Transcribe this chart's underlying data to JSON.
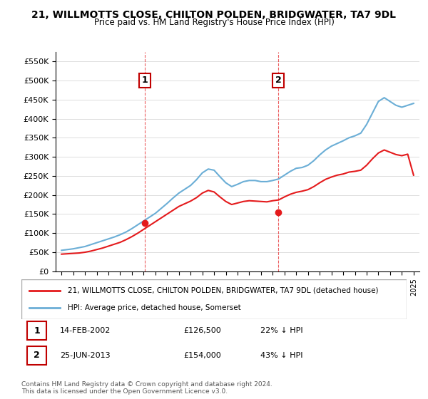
{
  "title": "21, WILLMOTTS CLOSE, CHILTON POLDEN, BRIDGWATER, TA7 9DL",
  "subtitle": "Price paid vs. HM Land Registry's House Price Index (HPI)",
  "ylim": [
    0,
    575000
  ],
  "yticks": [
    0,
    50000,
    100000,
    150000,
    200000,
    250000,
    300000,
    350000,
    400000,
    450000,
    500000,
    550000
  ],
  "xlabel": "",
  "legend_line1": "21, WILLMOTTS CLOSE, CHILTON POLDEN, BRIDGWATER, TA7 9DL (detached house)",
  "legend_line2": "HPI: Average price, detached house, Somerset",
  "transaction1_label": "1",
  "transaction1_date": "14-FEB-2002",
  "transaction1_price": 126500,
  "transaction1_year": 2002.12,
  "transaction1_text": "14-FEB-2002    £126,500    22% ↓ HPI",
  "transaction2_label": "2",
  "transaction2_date": "25-JUN-2013",
  "transaction2_price": 154000,
  "transaction2_year": 2013.48,
  "transaction2_text": "25-JUN-2013    £154,000    43% ↓ HPI",
  "footer": "Contains HM Land Registry data © Crown copyright and database right 2024.\nThis data is licensed under the Open Government Licence v3.0.",
  "hpi_color": "#6baed6",
  "price_color": "#e41a1c",
  "vline_color": "#e41a1c",
  "background_color": "#ffffff",
  "hpi_years": [
    1995,
    1995.5,
    1996,
    1996.5,
    1997,
    1997.5,
    1998,
    1998.5,
    1999,
    1999.5,
    2000,
    2000.5,
    2001,
    2001.5,
    2002,
    2002.5,
    2003,
    2003.5,
    2004,
    2004.5,
    2005,
    2005.5,
    2006,
    2006.5,
    2007,
    2007.5,
    2008,
    2008.5,
    2009,
    2009.5,
    2010,
    2010.5,
    2011,
    2011.5,
    2012,
    2012.5,
    2013,
    2013.5,
    2014,
    2014.5,
    2015,
    2015.5,
    2016,
    2016.5,
    2017,
    2017.5,
    2018,
    2018.5,
    2019,
    2019.5,
    2020,
    2020.5,
    2021,
    2021.5,
    2022,
    2022.5,
    2023,
    2023.5,
    2024,
    2024.5,
    2025
  ],
  "hpi_values": [
    55000,
    57000,
    59000,
    62000,
    65000,
    70000,
    75000,
    80000,
    85000,
    90000,
    96000,
    103000,
    112000,
    122000,
    132000,
    142000,
    152000,
    165000,
    178000,
    192000,
    205000,
    215000,
    225000,
    240000,
    258000,
    268000,
    265000,
    248000,
    232000,
    222000,
    228000,
    235000,
    238000,
    238000,
    235000,
    235000,
    238000,
    242000,
    252000,
    262000,
    270000,
    272000,
    278000,
    290000,
    305000,
    318000,
    328000,
    335000,
    342000,
    350000,
    355000,
    362000,
    385000,
    415000,
    445000,
    455000,
    445000,
    435000,
    430000,
    435000,
    440000
  ],
  "price_years": [
    1995,
    1995.5,
    1996,
    1996.5,
    1997,
    1997.5,
    1998,
    1998.5,
    1999,
    1999.5,
    2000,
    2000.5,
    2001,
    2001.5,
    2002,
    2002.5,
    2003,
    2003.5,
    2004,
    2004.5,
    2005,
    2005.5,
    2006,
    2006.5,
    2007,
    2007.5,
    2008,
    2008.5,
    2009,
    2009.5,
    2010,
    2010.5,
    2011,
    2011.5,
    2012,
    2012.5,
    2013,
    2013.5,
    2014,
    2014.5,
    2015,
    2015.5,
    2016,
    2016.5,
    2017,
    2017.5,
    2018,
    2018.5,
    2019,
    2019.5,
    2020,
    2020.5,
    2021,
    2021.5,
    2022,
    2022.5,
    2023,
    2023.5,
    2024,
    2024.5,
    2025
  ],
  "price_values": [
    45000,
    46000,
    47000,
    48000,
    50000,
    53000,
    57000,
    61000,
    66000,
    71000,
    76000,
    83000,
    91000,
    100000,
    110000,
    120000,
    130000,
    140000,
    150000,
    160000,
    170000,
    177000,
    184000,
    193000,
    205000,
    212000,
    208000,
    195000,
    183000,
    175000,
    179000,
    183000,
    185000,
    184000,
    183000,
    182000,
    185000,
    187000,
    195000,
    202000,
    207000,
    210000,
    214000,
    222000,
    232000,
    241000,
    247000,
    252000,
    255000,
    260000,
    262000,
    265000,
    278000,
    295000,
    310000,
    318000,
    312000,
    306000,
    303000,
    307000,
    252000
  ]
}
